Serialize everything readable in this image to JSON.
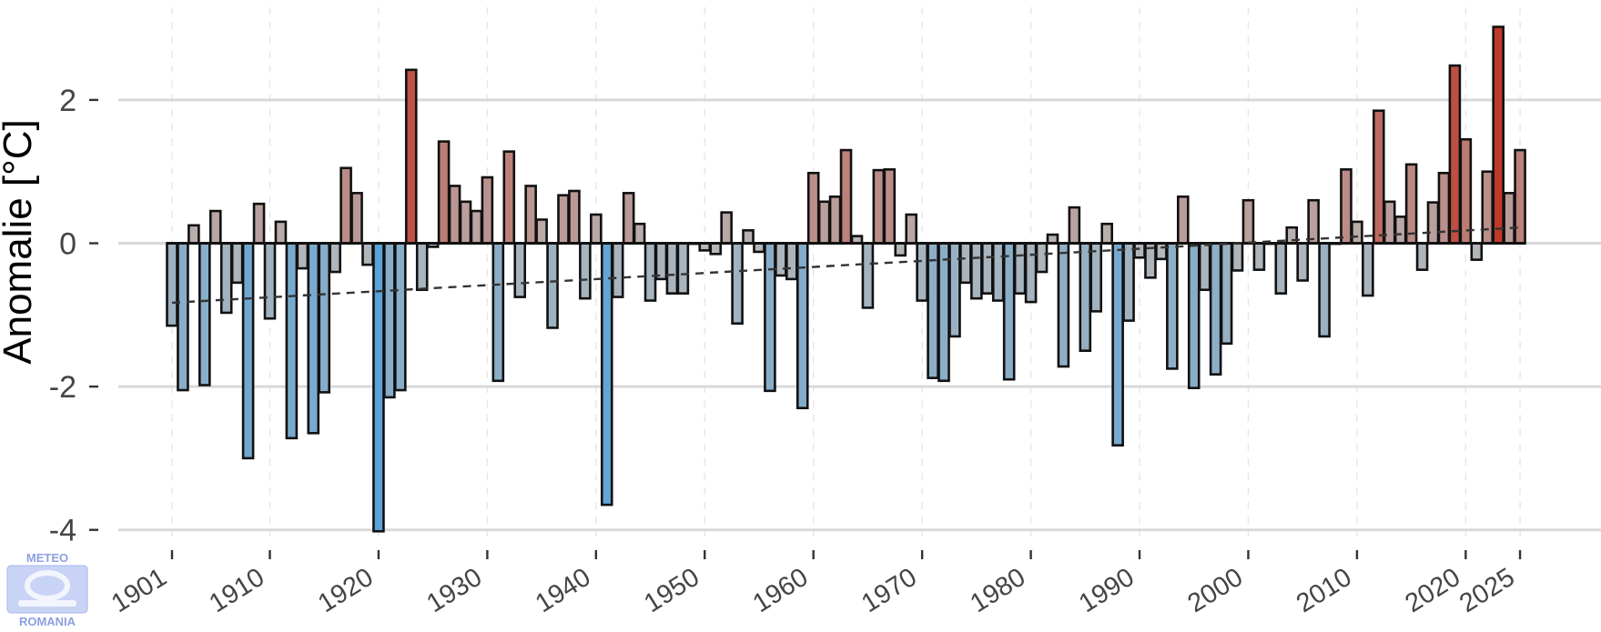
{
  "chart_data": {
    "type": "bar",
    "title": "",
    "xlabel": "",
    "ylabel": "Anomalie [°C]",
    "ylim": [
      -4.1,
      3.4
    ],
    "yticks": [
      2,
      0,
      -2,
      -4
    ],
    "ytick_labels": [
      "2",
      "0",
      "-2",
      "-4"
    ],
    "xticks": [
      1901,
      1910,
      1920,
      1930,
      1940,
      1950,
      1960,
      1970,
      1980,
      1990,
      2000,
      2010,
      2020,
      2025
    ],
    "xtick_labels": [
      "1901",
      "1910",
      "1920",
      "1930",
      "1940",
      "1950",
      "1960",
      "1970",
      "1980",
      "1990",
      "2000",
      "2010",
      "2020",
      "2025"
    ],
    "grid": true,
    "trend_line": {
      "style": "dashed",
      "start": [
        1901,
        -0.83
      ],
      "end": [
        2025,
        0.22
      ]
    },
    "colors": {
      "cold": "#5aa3d8",
      "neutral": "#b8b8b8",
      "warm": "#c0392b",
      "bar_edge": "#111111",
      "grid": "#d9d9d9",
      "trend": "#333333"
    },
    "x": [
      1901,
      1902,
      1903,
      1904,
      1905,
      1906,
      1907,
      1908,
      1909,
      1910,
      1911,
      1912,
      1913,
      1914,
      1915,
      1916,
      1917,
      1918,
      1919,
      1920,
      1921,
      1922,
      1923,
      1924,
      1925,
      1926,
      1927,
      1928,
      1929,
      1930,
      1931,
      1932,
      1933,
      1934,
      1935,
      1936,
      1937,
      1938,
      1939,
      1940,
      1941,
      1942,
      1943,
      1944,
      1945,
      1946,
      1947,
      1948,
      1949,
      1950,
      1951,
      1952,
      1953,
      1954,
      1955,
      1956,
      1957,
      1958,
      1959,
      1960,
      1961,
      1962,
      1963,
      1964,
      1965,
      1966,
      1967,
      1968,
      1969,
      1970,
      1971,
      1972,
      1973,
      1974,
      1975,
      1976,
      1977,
      1978,
      1979,
      1980,
      1981,
      1982,
      1983,
      1984,
      1985,
      1986,
      1987,
      1988,
      1989,
      1990,
      1991,
      1992,
      1993,
      1994,
      1995,
      1996,
      1997,
      1998,
      1999,
      2000,
      2001,
      2002,
      2003,
      2004,
      2005,
      2006,
      2007,
      2008,
      2009,
      2010,
      2011,
      2012,
      2013,
      2014,
      2015,
      2016,
      2017,
      2018,
      2019,
      2020,
      2021,
      2022,
      2023,
      2024,
      2025
    ],
    "values": [
      -1.15,
      -2.05,
      0.25,
      -1.98,
      0.45,
      -0.97,
      -0.55,
      -3.0,
      0.55,
      -1.05,
      0.3,
      -2.72,
      -0.35,
      -2.65,
      -2.08,
      -0.4,
      1.05,
      0.7,
      -0.3,
      -4.02,
      -2.15,
      -2.05,
      2.42,
      -0.65,
      -0.05,
      1.42,
      0.8,
      0.58,
      0.45,
      0.92,
      -1.92,
      1.28,
      -0.75,
      0.8,
      0.33,
      -1.18,
      0.67,
      0.73,
      -0.77,
      0.4,
      -3.65,
      -0.75,
      0.7,
      0.27,
      -0.8,
      -0.5,
      -0.7,
      -0.7,
      0.0,
      -0.1,
      -0.15,
      0.43,
      -1.12,
      0.18,
      -0.12,
      -2.06,
      -0.45,
      -0.5,
      -2.3,
      0.98,
      0.58,
      0.65,
      1.3,
      0.1,
      -0.9,
      1.02,
      1.03,
      -0.17,
      0.4,
      -0.8,
      -1.88,
      -1.92,
      -1.3,
      -0.55,
      -0.77,
      -0.7,
      -0.8,
      -1.9,
      -0.7,
      -0.82,
      -0.4,
      0.12,
      -1.72,
      0.5,
      -1.5,
      -0.95,
      0.27,
      -2.82,
      -1.08,
      -0.2,
      -0.48,
      -0.22,
      -1.75,
      0.65,
      -2.02,
      -0.65,
      -1.83,
      -1.4,
      -0.38,
      0.6,
      -0.37,
      0.0,
      -0.7,
      0.22,
      -0.52,
      0.6,
      -1.3,
      0.0,
      1.03,
      0.3,
      -0.73,
      1.85,
      0.58,
      0.37,
      1.1,
      -0.37,
      0.57,
      0.98,
      2.48,
      1.45,
      -0.23,
      1.0,
      3.02,
      0.7,
      1.3
    ]
  },
  "logo": {
    "top_text": "METEO",
    "bottom_text": "ROMANIA"
  }
}
